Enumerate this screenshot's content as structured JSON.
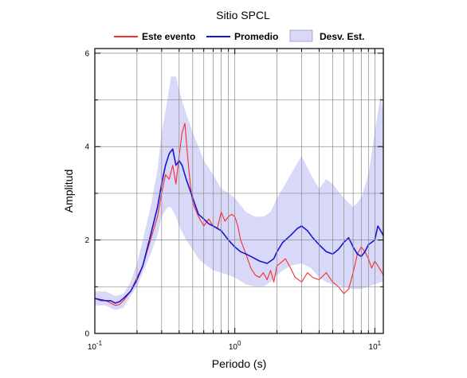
{
  "chart_data": {
    "type": "line",
    "title": "Sitio SPCL",
    "xlabel": "Periodo (s)",
    "ylabel": "Amplitud",
    "xscale": "log",
    "xlim": [
      0.1,
      11.5
    ],
    "ylim": [
      0,
      6.1
    ],
    "x_ticks": [
      {
        "value": 0.1,
        "base": "10",
        "exp": "-1"
      },
      {
        "value": 1,
        "base": "10",
        "exp": "0"
      },
      {
        "value": 10,
        "base": "10",
        "exp": "1"
      }
    ],
    "y_ticks": [
      0,
      2,
      4,
      6
    ],
    "grid": true,
    "legend": {
      "placement": "top",
      "items": [
        {
          "label": "Este evento",
          "color": "#ff2a2a",
          "kind": "line"
        },
        {
          "label": "Promedio",
          "color": "#1616d2",
          "kind": "line"
        },
        {
          "label": "Desv. Est.",
          "color": "#d8d8f8",
          "kind": "patch"
        }
      ]
    },
    "band": {
      "name": "Desv. Est.",
      "color": "#d8d8f8",
      "x": [
        0.1,
        0.12,
        0.14,
        0.16,
        0.18,
        0.2,
        0.22,
        0.25,
        0.28,
        0.3,
        0.33,
        0.35,
        0.38,
        0.4,
        0.45,
        0.5,
        0.55,
        0.6,
        0.7,
        0.8,
        0.9,
        1.0,
        1.2,
        1.4,
        1.6,
        1.8,
        2.0,
        2.2,
        2.5,
        3.0,
        3.5,
        4.0,
        4.5,
        5.0,
        6.0,
        7.0,
        8.0,
        9.0,
        10.0,
        11.0,
        11.5
      ],
      "upper": [
        0.9,
        0.9,
        0.8,
        0.85,
        1.1,
        1.5,
        2.0,
        2.7,
        3.5,
        4.3,
        5.0,
        5.5,
        5.5,
        5.2,
        4.7,
        4.3,
        4.0,
        3.7,
        3.4,
        3.1,
        3.0,
        2.9,
        2.6,
        2.5,
        2.5,
        2.6,
        2.9,
        3.1,
        3.4,
        3.8,
        3.4,
        3.1,
        3.3,
        3.2,
        2.9,
        2.7,
        2.9,
        3.4,
        4.3,
        5.1,
        4.7
      ],
      "lower": [
        0.6,
        0.6,
        0.5,
        0.55,
        0.8,
        1.0,
        1.3,
        1.7,
        2.1,
        2.5,
        2.7,
        2.7,
        2.5,
        2.3,
        2.0,
        1.8,
        1.6,
        1.5,
        1.35,
        1.3,
        1.25,
        1.2,
        1.05,
        1.0,
        1.0,
        1.1,
        1.25,
        1.35,
        1.45,
        1.5,
        1.4,
        1.2,
        1.1,
        1.05,
        1.0,
        0.95,
        0.95,
        1.0,
        1.05,
        1.1,
        1.1
      ]
    },
    "series": [
      {
        "name": "Este evento",
        "color": "#ff2a2a",
        "x": [
          0.1,
          0.11,
          0.12,
          0.13,
          0.14,
          0.15,
          0.16,
          0.18,
          0.2,
          0.22,
          0.25,
          0.28,
          0.3,
          0.32,
          0.34,
          0.36,
          0.38,
          0.4,
          0.42,
          0.44,
          0.46,
          0.48,
          0.5,
          0.55,
          0.6,
          0.65,
          0.7,
          0.75,
          0.8,
          0.85,
          0.9,
          0.95,
          1.0,
          1.05,
          1.1,
          1.2,
          1.3,
          1.4,
          1.5,
          1.6,
          1.7,
          1.8,
          1.9,
          2.0,
          2.1,
          2.3,
          2.5,
          2.7,
          3.0,
          3.3,
          3.6,
          4.0,
          4.5,
          5.0,
          5.5,
          6.0,
          6.5,
          7.0,
          7.5,
          8.0,
          8.5,
          9.0,
          9.5,
          10.0,
          10.5,
          11.0,
          11.5
        ],
        "y": [
          0.75,
          0.7,
          0.7,
          0.65,
          0.6,
          0.62,
          0.7,
          0.9,
          1.2,
          1.45,
          2.0,
          2.5,
          3.0,
          3.4,
          3.3,
          3.6,
          3.2,
          3.8,
          4.3,
          4.5,
          3.8,
          3.2,
          2.8,
          2.5,
          2.3,
          2.45,
          2.3,
          2.25,
          2.6,
          2.4,
          2.5,
          2.55,
          2.5,
          2.3,
          2.0,
          1.7,
          1.4,
          1.25,
          1.2,
          1.3,
          1.15,
          1.35,
          1.1,
          1.45,
          1.5,
          1.6,
          1.4,
          1.2,
          1.1,
          1.3,
          1.2,
          1.15,
          1.3,
          1.1,
          1.0,
          0.85,
          0.95,
          1.3,
          1.7,
          1.85,
          1.75,
          1.6,
          1.4,
          1.55,
          1.45,
          1.35,
          1.25
        ]
      },
      {
        "name": "Promedio",
        "color": "#1616d2",
        "x": [
          0.1,
          0.11,
          0.12,
          0.13,
          0.14,
          0.15,
          0.16,
          0.18,
          0.2,
          0.22,
          0.25,
          0.28,
          0.3,
          0.32,
          0.34,
          0.36,
          0.38,
          0.4,
          0.42,
          0.45,
          0.5,
          0.55,
          0.6,
          0.65,
          0.7,
          0.8,
          0.9,
          1.0,
          1.1,
          1.2,
          1.3,
          1.5,
          1.7,
          1.9,
          2.0,
          2.2,
          2.5,
          2.8,
          3.0,
          3.3,
          3.6,
          4.0,
          4.5,
          5.0,
          5.5,
          6.0,
          6.5,
          7.0,
          7.5,
          8.0,
          8.5,
          9.0,
          10.0,
          10.5,
          11.0,
          11.5
        ],
        "y": [
          0.75,
          0.72,
          0.7,
          0.7,
          0.65,
          0.68,
          0.75,
          0.9,
          1.15,
          1.45,
          2.1,
          2.7,
          3.2,
          3.6,
          3.85,
          3.95,
          3.6,
          3.7,
          3.6,
          3.3,
          2.9,
          2.55,
          2.45,
          2.35,
          2.3,
          2.2,
          2.0,
          1.85,
          1.75,
          1.7,
          1.65,
          1.55,
          1.5,
          1.6,
          1.75,
          1.95,
          2.1,
          2.25,
          2.3,
          2.2,
          2.05,
          1.9,
          1.75,
          1.7,
          1.8,
          1.95,
          2.05,
          1.85,
          1.7,
          1.65,
          1.75,
          1.9,
          2.0,
          2.3,
          2.2,
          2.1
        ]
      }
    ]
  }
}
